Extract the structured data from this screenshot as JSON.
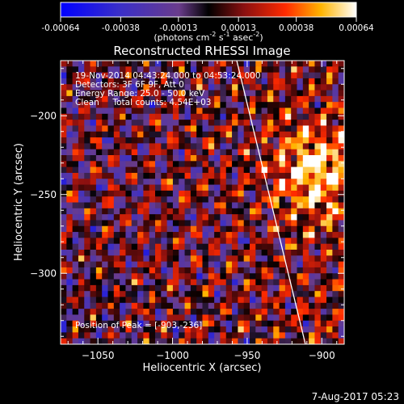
{
  "colorbar": {
    "min": -0.00064,
    "max": 0.00064,
    "tick_labels": [
      "-0.00064",
      "-0.00038",
      "-0.00013",
      "0.00013",
      "0.00038",
      "0.00064"
    ],
    "units_prefix": "(photons cm",
    "units_exp1": "-2",
    "units_mid": " s",
    "units_exp2": "-1",
    "units_end": " asec",
    "units_exp3": "-2",
    "units_close": ")",
    "colormap": "blue-black-red-yellow-white"
  },
  "chart_data": {
    "type": "heatmap",
    "title": "Reconstructed RHESSI Image",
    "xlabel": "Heliocentric X (arcsec)",
    "ylabel": "Heliocentric Y (arcsec)",
    "xlim": [
      -1075,
      -885
    ],
    "ylim": [
      -345,
      -165
    ],
    "xticks": [
      -1050,
      -1000,
      -950,
      -900
    ],
    "yticks": [
      -200,
      -250,
      -300
    ],
    "xtick_labels": [
      "−1050",
      "−1000",
      "−950",
      "−900"
    ],
    "ytick_labels": [
      "−200",
      "−250",
      "−300"
    ],
    "annotations": [
      "19-Nov-2014 04:43:24.000 to 04:53:24.000",
      "Detectors: 3F 6F 9F, Att 0",
      "Energy Range: 25.0 - 50.0 keV",
      "Clean     Total counts: 4.54E+03"
    ],
    "peak_label": "Position of Peak = [-903,-236]",
    "peak": [
      -903,
      -236
    ],
    "limb_line": [
      [
        -957,
        -165
      ],
      [
        -911,
        -345
      ]
    ],
    "pattern": "fringed positive/negative streaks, stronger toward the limb"
  },
  "footer": {
    "timestamp": "7-Aug-2017 05:23"
  },
  "colors": {
    "background": "#000000",
    "foreground": "#ffffff"
  }
}
